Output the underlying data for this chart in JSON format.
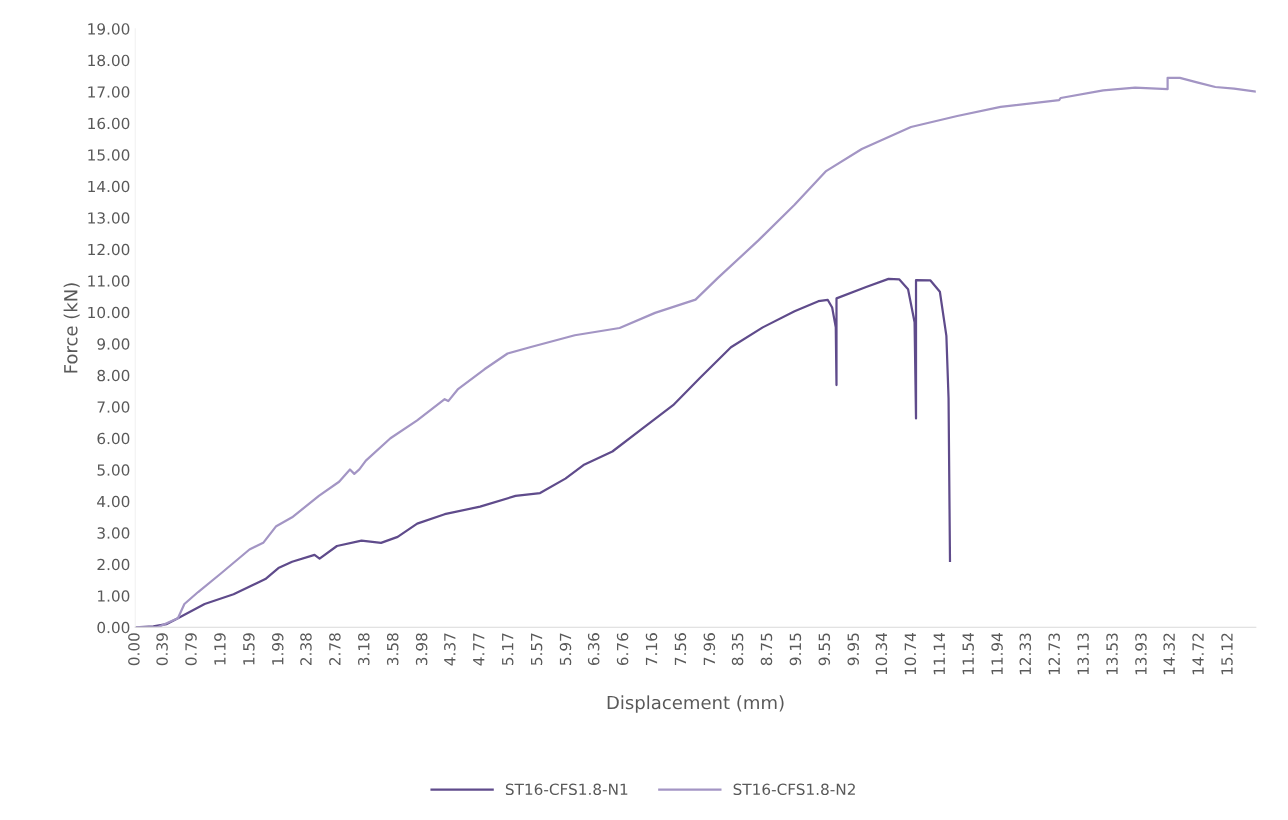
{
  "chart_data": {
    "type": "line",
    "xlabel": "Displacement (mm)",
    "ylabel": "Force (kN)",
    "xlim": [
      0,
      15.5
    ],
    "ylim": [
      0,
      19
    ],
    "xticks": [
      {
        "value": 0,
        "label": "0.00"
      },
      {
        "value": 0.39,
        "label": "0.39"
      },
      {
        "value": 0.79,
        "label": "0.79"
      },
      {
        "value": 1.19,
        "label": "1.19"
      },
      {
        "value": 1.59,
        "label": "1.59"
      },
      {
        "value": 1.99,
        "label": "1.99"
      },
      {
        "value": 2.38,
        "label": "2.38"
      },
      {
        "value": 2.78,
        "label": "2.78"
      },
      {
        "value": 3.18,
        "label": "3.18"
      },
      {
        "value": 3.58,
        "label": "3.58"
      },
      {
        "value": 3.98,
        "label": "3.98"
      },
      {
        "value": 4.37,
        "label": "4.37"
      },
      {
        "value": 4.77,
        "label": "4.77"
      },
      {
        "value": 5.17,
        "label": "5.17"
      },
      {
        "value": 5.57,
        "label": "5.57"
      },
      {
        "value": 5.97,
        "label": "5.97"
      },
      {
        "value": 6.36,
        "label": "6.36"
      },
      {
        "value": 6.76,
        "label": "6.76"
      },
      {
        "value": 7.16,
        "label": "7.16"
      },
      {
        "value": 7.56,
        "label": "7.56"
      },
      {
        "value": 7.96,
        "label": "7.96"
      },
      {
        "value": 8.35,
        "label": "8.35"
      },
      {
        "value": 8.75,
        "label": "8.75"
      },
      {
        "value": 9.15,
        "label": "9.15"
      },
      {
        "value": 9.55,
        "label": "9.55"
      },
      {
        "value": 9.95,
        "label": "9.95"
      },
      {
        "value": 10.34,
        "label": "10.34"
      },
      {
        "value": 10.74,
        "label": "10.74"
      },
      {
        "value": 11.14,
        "label": "11.14"
      },
      {
        "value": 11.54,
        "label": "11.54"
      },
      {
        "value": 11.94,
        "label": "11.94"
      },
      {
        "value": 12.33,
        "label": "12.33"
      },
      {
        "value": 12.73,
        "label": "12.73"
      },
      {
        "value": 13.13,
        "label": "13.13"
      },
      {
        "value": 13.53,
        "label": "13.53"
      },
      {
        "value": 13.93,
        "label": "13.93"
      },
      {
        "value": 14.32,
        "label": "14.32"
      },
      {
        "value": 14.72,
        "label": "14.72"
      },
      {
        "value": 15.12,
        "label": "15.12"
      }
    ],
    "yticks": [
      {
        "value": 0,
        "label": "0.00"
      },
      {
        "value": 1,
        "label": "1.00"
      },
      {
        "value": 2,
        "label": "2.00"
      },
      {
        "value": 3,
        "label": "3.00"
      },
      {
        "value": 4,
        "label": "4.00"
      },
      {
        "value": 5,
        "label": "5.00"
      },
      {
        "value": 6,
        "label": "6.00"
      },
      {
        "value": 7,
        "label": "7.00"
      },
      {
        "value": 8,
        "label": "8.00"
      },
      {
        "value": 9,
        "label": "9.00"
      },
      {
        "value": 10,
        "label": "10.00"
      },
      {
        "value": 11,
        "label": "11.00"
      },
      {
        "value": 12,
        "label": "12.00"
      },
      {
        "value": 13,
        "label": "13.00"
      },
      {
        "value": 14,
        "label": "14.00"
      },
      {
        "value": 15,
        "label": "15.00"
      },
      {
        "value": 16,
        "label": "16.00"
      },
      {
        "value": 17,
        "label": "17.00"
      },
      {
        "value": 18,
        "label": "18.00"
      },
      {
        "value": 19,
        "label": "19.00"
      }
    ],
    "grid": false,
    "legend": "bottom",
    "marker": "none",
    "line_style": "solid",
    "series": [
      {
        "name": "ST16-CFS1.8-N1",
        "color": "#5f4b8b",
        "x": [
          0,
          0.25,
          0.43,
          0.59,
          0.96,
          1.36,
          1.8,
          1.98,
          2.17,
          2.48,
          2.55,
          2.79,
          3.13,
          3.4,
          3.63,
          3.9,
          4.28,
          4.77,
          5.26,
          5.6,
          5.95,
          6.2,
          6.6,
          7.0,
          7.44,
          7.81,
          8.24,
          8.68,
          9.12,
          9.45,
          9.58,
          9.64,
          9.69,
          9.7,
          9.7,
          10.11,
          10.42,
          10.57,
          10.69,
          10.78,
          10.8,
          10.8,
          11.0,
          11.13,
          11.22,
          11.25,
          11.27
        ],
        "values": [
          0,
          0.03,
          0.1,
          0.29,
          0.74,
          1.05,
          1.53,
          1.88,
          2.08,
          2.3,
          2.18,
          2.58,
          2.75,
          2.68,
          2.87,
          3.29,
          3.59,
          3.83,
          4.17,
          4.26,
          4.72,
          5.15,
          5.58,
          6.28,
          7.05,
          7.91,
          8.89,
          9.52,
          10.03,
          10.35,
          10.39,
          10.15,
          9.52,
          7.69,
          10.44,
          10.8,
          11.06,
          11.04,
          10.73,
          9.68,
          6.63,
          11.02,
          11.01,
          10.65,
          9.25,
          7.28,
          2.11
        ]
      },
      {
        "name": "ST16-CFS1.8-N2",
        "color": "#a395c4",
        "x": [
          0,
          0.31,
          0.59,
          0.68,
          0.87,
          1.18,
          1.58,
          1.77,
          1.95,
          2.17,
          2.54,
          2.82,
          2.97,
          3.03,
          3.1,
          3.19,
          3.53,
          3.9,
          4.28,
          4.33,
          4.46,
          4.83,
          5.15,
          5.46,
          6.08,
          6.7,
          7.19,
          7.75,
          8.06,
          8.62,
          9.12,
          9.55,
          10.05,
          10.73,
          11.37,
          11.97,
          12.78,
          12.8,
          13.39,
          13.83,
          14.28,
          14.28,
          14.45,
          14.7,
          14.94,
          15.2,
          15.5
        ],
        "values": [
          0,
          0,
          0.29,
          0.74,
          1.12,
          1.7,
          2.47,
          2.68,
          3.21,
          3.49,
          4.17,
          4.62,
          5.01,
          4.87,
          5.01,
          5.29,
          6.0,
          6.57,
          7.24,
          7.18,
          7.55,
          8.19,
          8.69,
          8.89,
          9.27,
          9.5,
          9.98,
          10.4,
          11.09,
          12.28,
          13.41,
          14.47,
          15.18,
          15.88,
          16.23,
          16.52,
          16.73,
          16.8,
          17.04,
          17.13,
          17.08,
          17.44,
          17.44,
          17.29,
          17.15,
          17.1,
          17.0
        ]
      }
    ]
  }
}
